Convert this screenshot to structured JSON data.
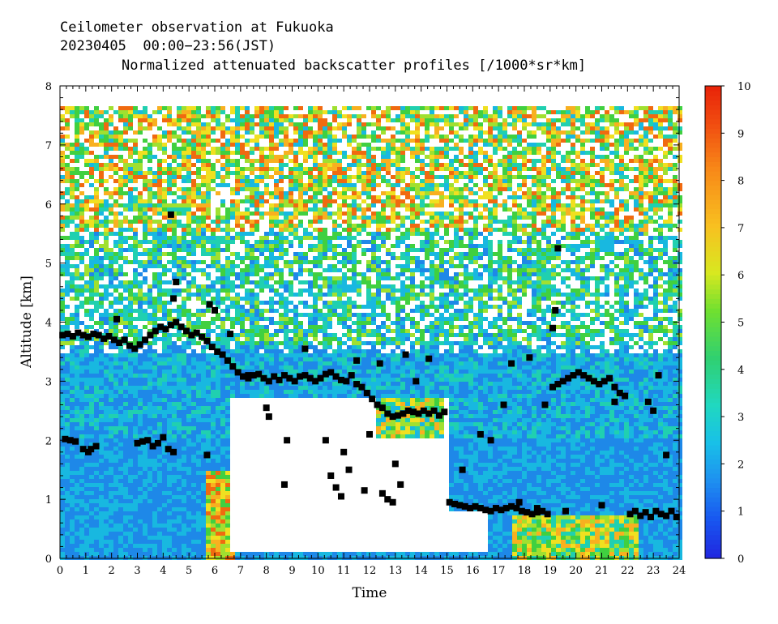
{
  "header": {
    "line1": "Ceilometer observation at Fukuoka",
    "line2": "20230405  00:00−23:56(JST)",
    "line3": "Normalized attenuated backscatter profiles [/1000*sr*km]"
  },
  "colors": {
    "white_high": "#ffffff",
    "scale": [
      "#2a44d8",
      "#1e88e8",
      "#18b8e0",
      "#20d0b0",
      "#40d040",
      "#a0e030",
      "#f0e020",
      "#f8b020",
      "#f06a10",
      "#e82808"
    ]
  },
  "chart_data": {
    "type": "heatmap",
    "title": "Normalized attenuated backscatter profiles [/1000*sr*km]",
    "xlabel": "Time",
    "ylabel": "Altitude [km]",
    "xlim": [
      0,
      24
    ],
    "ylim": [
      0,
      8
    ],
    "x_ticks": [
      "0",
      "1",
      "2",
      "3",
      "4",
      "5",
      "6",
      "7",
      "8",
      "9",
      "10",
      "11",
      "12",
      "13",
      "14",
      "15",
      "16",
      "17",
      "18",
      "19",
      "20",
      "21",
      "22",
      "23",
      "24"
    ],
    "y_ticks": [
      "0",
      "1",
      "2",
      "3",
      "4",
      "5",
      "6",
      "7",
      "8"
    ],
    "colorbar": {
      "range": [
        0,
        10
      ],
      "ticks": [
        "0",
        "1",
        "2",
        "3",
        "4",
        "5",
        "6",
        "7",
        "8",
        "9",
        "10"
      ]
    },
    "data_ceiling_km": 7.65,
    "cloud_base_series": {
      "name": "",
      "marker": "square",
      "points": [
        [
          0.1,
          3.78
        ],
        [
          0.3,
          3.8
        ],
        [
          0.5,
          3.76
        ],
        [
          0.7,
          3.82
        ],
        [
          0.9,
          3.78
        ],
        [
          1.1,
          3.75
        ],
        [
          1.3,
          3.8
        ],
        [
          1.5,
          3.78
        ],
        [
          1.7,
          3.72
        ],
        [
          1.9,
          3.76
        ],
        [
          2.1,
          3.7
        ],
        [
          2.3,
          3.65
        ],
        [
          2.5,
          3.7
        ],
        [
          2.7,
          3.6
        ],
        [
          2.9,
          3.55
        ],
        [
          3.1,
          3.62
        ],
        [
          3.3,
          3.7
        ],
        [
          3.5,
          3.78
        ],
        [
          3.7,
          3.85
        ],
        [
          3.9,
          3.92
        ],
        [
          4.1,
          3.88
        ],
        [
          4.3,
          3.95
        ],
        [
          4.5,
          4.0
        ],
        [
          4.7,
          3.92
        ],
        [
          4.9,
          3.85
        ],
        [
          5.1,
          3.78
        ],
        [
          5.3,
          3.82
        ],
        [
          5.5,
          3.75
        ],
        [
          5.7,
          3.68
        ],
        [
          5.9,
          3.58
        ],
        [
          6.1,
          3.5
        ],
        [
          6.3,
          3.45
        ],
        [
          6.5,
          3.35
        ],
        [
          6.7,
          3.25
        ],
        [
          6.9,
          3.15
        ],
        [
          7.1,
          3.08
        ],
        [
          7.3,
          3.05
        ],
        [
          7.5,
          3.1
        ],
        [
          7.7,
          3.12
        ],
        [
          7.9,
          3.05
        ],
        [
          8.1,
          3.0
        ],
        [
          8.3,
          3.08
        ],
        [
          8.5,
          3.02
        ],
        [
          8.7,
          3.1
        ],
        [
          8.9,
          3.05
        ],
        [
          9.1,
          3.0
        ],
        [
          9.3,
          3.08
        ],
        [
          9.5,
          3.1
        ],
        [
          9.7,
          3.05
        ],
        [
          9.9,
          3.0
        ],
        [
          10.1,
          3.05
        ],
        [
          10.3,
          3.12
        ],
        [
          10.5,
          3.15
        ],
        [
          10.7,
          3.08
        ],
        [
          10.9,
          3.02
        ],
        [
          11.1,
          3.0
        ],
        [
          11.3,
          3.1
        ],
        [
          11.5,
          2.95
        ],
        [
          11.7,
          2.9
        ],
        [
          11.9,
          2.8
        ],
        [
          12.1,
          2.7
        ],
        [
          12.3,
          2.6
        ],
        [
          12.5,
          2.55
        ],
        [
          12.7,
          2.45
        ],
        [
          12.9,
          2.4
        ],
        [
          13.1,
          2.42
        ],
        [
          13.3,
          2.45
        ],
        [
          13.5,
          2.5
        ],
        [
          13.7,
          2.48
        ],
        [
          13.9,
          2.45
        ],
        [
          14.1,
          2.5
        ],
        [
          14.3,
          2.45
        ],
        [
          14.5,
          2.5
        ],
        [
          14.7,
          2.42
        ],
        [
          14.9,
          2.48
        ],
        [
          15.1,
          0.95
        ],
        [
          15.3,
          0.92
        ],
        [
          15.5,
          0.9
        ],
        [
          15.7,
          0.88
        ],
        [
          15.9,
          0.85
        ],
        [
          16.1,
          0.88
        ],
        [
          16.3,
          0.85
        ],
        [
          16.5,
          0.82
        ],
        [
          16.7,
          0.8
        ],
        [
          16.9,
          0.85
        ],
        [
          17.1,
          0.82
        ],
        [
          17.3,
          0.85
        ],
        [
          17.5,
          0.88
        ],
        [
          17.7,
          0.85
        ],
        [
          17.9,
          0.8
        ],
        [
          18.1,
          0.78
        ],
        [
          18.3,
          0.75
        ],
        [
          18.5,
          0.78
        ],
        [
          18.7,
          0.8
        ],
        [
          18.9,
          0.75
        ],
        [
          19.1,
          2.9
        ],
        [
          19.3,
          2.95
        ],
        [
          19.5,
          3.0
        ],
        [
          19.7,
          3.05
        ],
        [
          19.9,
          3.1
        ],
        [
          20.1,
          3.15
        ],
        [
          20.3,
          3.1
        ],
        [
          20.5,
          3.05
        ],
        [
          20.7,
          3.0
        ],
        [
          20.9,
          2.95
        ],
        [
          21.1,
          3.0
        ],
        [
          21.3,
          3.05
        ],
        [
          21.5,
          2.9
        ],
        [
          21.7,
          2.8
        ],
        [
          21.9,
          2.75
        ],
        [
          22.1,
          0.75
        ],
        [
          22.3,
          0.8
        ],
        [
          22.5,
          0.72
        ],
        [
          22.7,
          0.78
        ],
        [
          22.9,
          0.7
        ],
        [
          23.1,
          0.8
        ],
        [
          23.3,
          0.75
        ],
        [
          23.5,
          0.72
        ],
        [
          23.7,
          0.8
        ],
        [
          23.9,
          0.7
        ],
        [
          0.2,
          2.02
        ],
        [
          0.4,
          2.0
        ],
        [
          0.6,
          1.98
        ],
        [
          0.9,
          1.85
        ],
        [
          1.1,
          1.8
        ],
        [
          1.4,
          1.9
        ],
        [
          3.0,
          1.95
        ],
        [
          3.2,
          1.98
        ],
        [
          3.4,
          2.0
        ],
        [
          3.6,
          1.9
        ],
        [
          3.8,
          1.95
        ],
        [
          4.0,
          2.05
        ],
        [
          4.2,
          1.85
        ],
        [
          4.4,
          1.8
        ],
        [
          4.3,
          5.82
        ],
        [
          4.4,
          4.4
        ],
        [
          4.5,
          4.68
        ],
        [
          19.3,
          5.25
        ],
        [
          19.2,
          4.2
        ],
        [
          19.1,
          3.9
        ],
        [
          5.8,
          4.3
        ],
        [
          6.0,
          4.2
        ],
        [
          5.7,
          1.75
        ],
        [
          8.0,
          2.55
        ],
        [
          8.1,
          2.4
        ],
        [
          8.7,
          1.25
        ],
        [
          8.8,
          2.0
        ],
        [
          9.5,
          3.55
        ],
        [
          10.3,
          2.0
        ],
        [
          10.5,
          1.4
        ],
        [
          10.7,
          1.2
        ],
        [
          10.9,
          1.05
        ],
        [
          11.0,
          1.8
        ],
        [
          11.2,
          1.5
        ],
        [
          11.8,
          1.15
        ],
        [
          12.0,
          2.1
        ],
        [
          12.5,
          1.1
        ],
        [
          12.7,
          1.0
        ],
        [
          12.9,
          0.95
        ],
        [
          13.0,
          1.6
        ],
        [
          13.2,
          1.25
        ],
        [
          13.8,
          3.0
        ],
        [
          14.3,
          3.38
        ],
        [
          15.6,
          1.5
        ],
        [
          16.3,
          2.1
        ],
        [
          16.7,
          2.0
        ],
        [
          17.2,
          2.6
        ],
        [
          17.5,
          3.3
        ],
        [
          17.8,
          0.95
        ],
        [
          18.2,
          3.4
        ],
        [
          18.5,
          0.85
        ],
        [
          18.8,
          2.6
        ],
        [
          19.6,
          0.8
        ],
        [
          21.0,
          0.9
        ],
        [
          21.5,
          2.65
        ],
        [
          22.8,
          2.65
        ],
        [
          23.0,
          2.5
        ],
        [
          23.2,
          3.1
        ],
        [
          23.5,
          1.75
        ],
        [
          1.2,
          1.85
        ],
        [
          2.2,
          4.05
        ],
        [
          6.6,
          3.8
        ],
        [
          7.3,
          3.1
        ],
        [
          13.4,
          3.45
        ],
        [
          12.4,
          3.3
        ],
        [
          11.5,
          3.35
        ]
      ]
    }
  }
}
